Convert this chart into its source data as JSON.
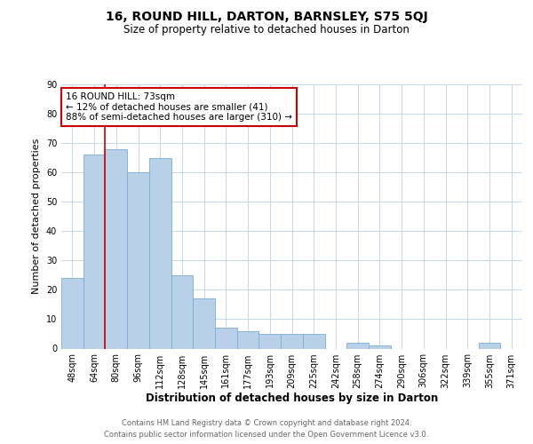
{
  "title": "16, ROUND HILL, DARTON, BARNSLEY, S75 5QJ",
  "subtitle": "Size of property relative to detached houses in Darton",
  "xlabel": "Distribution of detached houses by size in Darton",
  "ylabel": "Number of detached properties",
  "categories": [
    "48sqm",
    "64sqm",
    "80sqm",
    "96sqm",
    "112sqm",
    "128sqm",
    "145sqm",
    "161sqm",
    "177sqm",
    "193sqm",
    "209sqm",
    "225sqm",
    "242sqm",
    "258sqm",
    "274sqm",
    "290sqm",
    "306sqm",
    "322sqm",
    "339sqm",
    "355sqm",
    "371sqm"
  ],
  "values": [
    24,
    66,
    68,
    60,
    65,
    25,
    17,
    7,
    6,
    5,
    5,
    5,
    0,
    2,
    1,
    0,
    0,
    0,
    0,
    2,
    0
  ],
  "bar_color": "#b8d0e8",
  "bar_edge_color": "#7aaed0",
  "background_color": "#ffffff",
  "grid_color": "#c8d8ea",
  "property_line_color": "#cc0000",
  "property_line_x": 1.5,
  "annotation_text_line1": "16 ROUND HILL: 73sqm",
  "annotation_text_line2": "← 12% of detached houses are smaller (41)",
  "annotation_text_line3": "88% of semi-detached houses are larger (310) →",
  "annotation_box_facecolor": "#ffffff",
  "annotation_box_edgecolor": "#cc0000",
  "ylim": [
    0,
    90
  ],
  "yticks": [
    0,
    10,
    20,
    30,
    40,
    50,
    60,
    70,
    80,
    90
  ],
  "footer_line1": "Contains HM Land Registry data © Crown copyright and database right 2024.",
  "footer_line2": "Contains public sector information licensed under the Open Government Licence v3.0.",
  "title_fontsize": 10,
  "subtitle_fontsize": 8.5,
  "ylabel_fontsize": 8,
  "xlabel_fontsize": 8.5,
  "tick_fontsize": 7,
  "footer_fontsize": 6,
  "annot_fontsize": 7.5
}
